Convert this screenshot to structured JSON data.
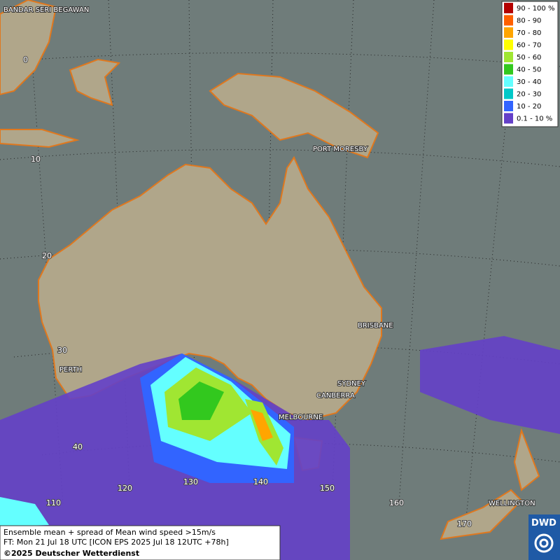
{
  "places": [
    "BANDAR SERI BEGAWAN",
    "PORT MORESBY",
    "BRISBANE",
    "PERTH",
    "SYDNEY",
    "CANBERRA",
    "MELBOURNE",
    "WELLINGTON"
  ],
  "grid": {
    "latitudes": [
      0,
      10,
      20,
      30,
      40
    ],
    "longitudes": [
      110,
      120,
      130,
      140,
      150,
      160,
      170
    ]
  },
  "legend": [
    {
      "label": "90 - 100 %",
      "color": "#b40000"
    },
    {
      "label": "80 - 90",
      "color": "#ff6000"
    },
    {
      "label": "70 - 80",
      "color": "#ffa500"
    },
    {
      "label": "60 - 70",
      "color": "#ffff00"
    },
    {
      "label": "50 - 60",
      "color": "#a0e632"
    },
    {
      "label": "40 - 50",
      "color": "#32c81e"
    },
    {
      "label": "30 - 40",
      "color": "#64ffff"
    },
    {
      "label": "20 - 30",
      "color": "#00c8c8"
    },
    {
      "label": "10 - 20",
      "color": "#3264ff"
    },
    {
      "label": "0.1 - 10 %",
      "color": "#6440c8"
    }
  ],
  "footer": [
    "Ensemble mean + spread of Mean wind speed >15m/s",
    "FT: Mon 21 Jul 18 UTC [ICON EPS 2025 Jul 18 12UTC +78h]",
    "©2025 Deutscher Wetterdienst"
  ],
  "logo": "DWD"
}
